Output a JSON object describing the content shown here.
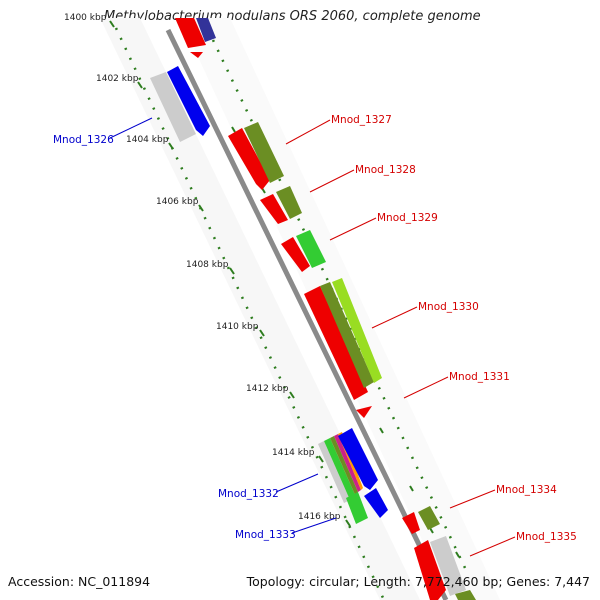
{
  "title": "Methylobacterium nodulans ORS 2060, complete genome",
  "footer": {
    "accession": "Accession: NC_011894",
    "summary": "Topology: circular; Length: 7,772,460 bp; Genes: 7,447"
  },
  "colors": {
    "backbone": "#8a8a8a",
    "tick": "#2e7d1f",
    "red_label": "#d40000",
    "blue_label": "#0000cc",
    "red": "#ee0000",
    "olive": "#6b8e23",
    "green": "#33cc33",
    "lime": "#99dd22",
    "blue": "#0000ee",
    "grey": "#cccccc",
    "navy": "#333399"
  },
  "ticks": [
    {
      "label": "1400 kbp"
    },
    {
      "label": "1402 kbp"
    },
    {
      "label": "1404 kbp"
    },
    {
      "label": "1406 kbp"
    },
    {
      "label": "1408 kbp"
    },
    {
      "label": "1410 kbp"
    },
    {
      "label": "1412 kbp"
    },
    {
      "label": "1414 kbp"
    },
    {
      "label": "1416 kbp"
    }
  ],
  "gene_labels": [
    {
      "text": "Mnod_1326",
      "color": "blue"
    },
    {
      "text": "Mnod_1327",
      "color": "red"
    },
    {
      "text": "Mnod_1328",
      "color": "red"
    },
    {
      "text": "Mnod_1329",
      "color": "red"
    },
    {
      "text": "Mnod_1330",
      "color": "red"
    },
    {
      "text": "Mnod_1331",
      "color": "red"
    },
    {
      "text": "Mnod_1332",
      "color": "blue"
    },
    {
      "text": "Mnod_1333",
      "color": "blue"
    },
    {
      "text": "Mnod_1334",
      "color": "red"
    },
    {
      "text": "Mnod_1335",
      "color": "red"
    }
  ]
}
